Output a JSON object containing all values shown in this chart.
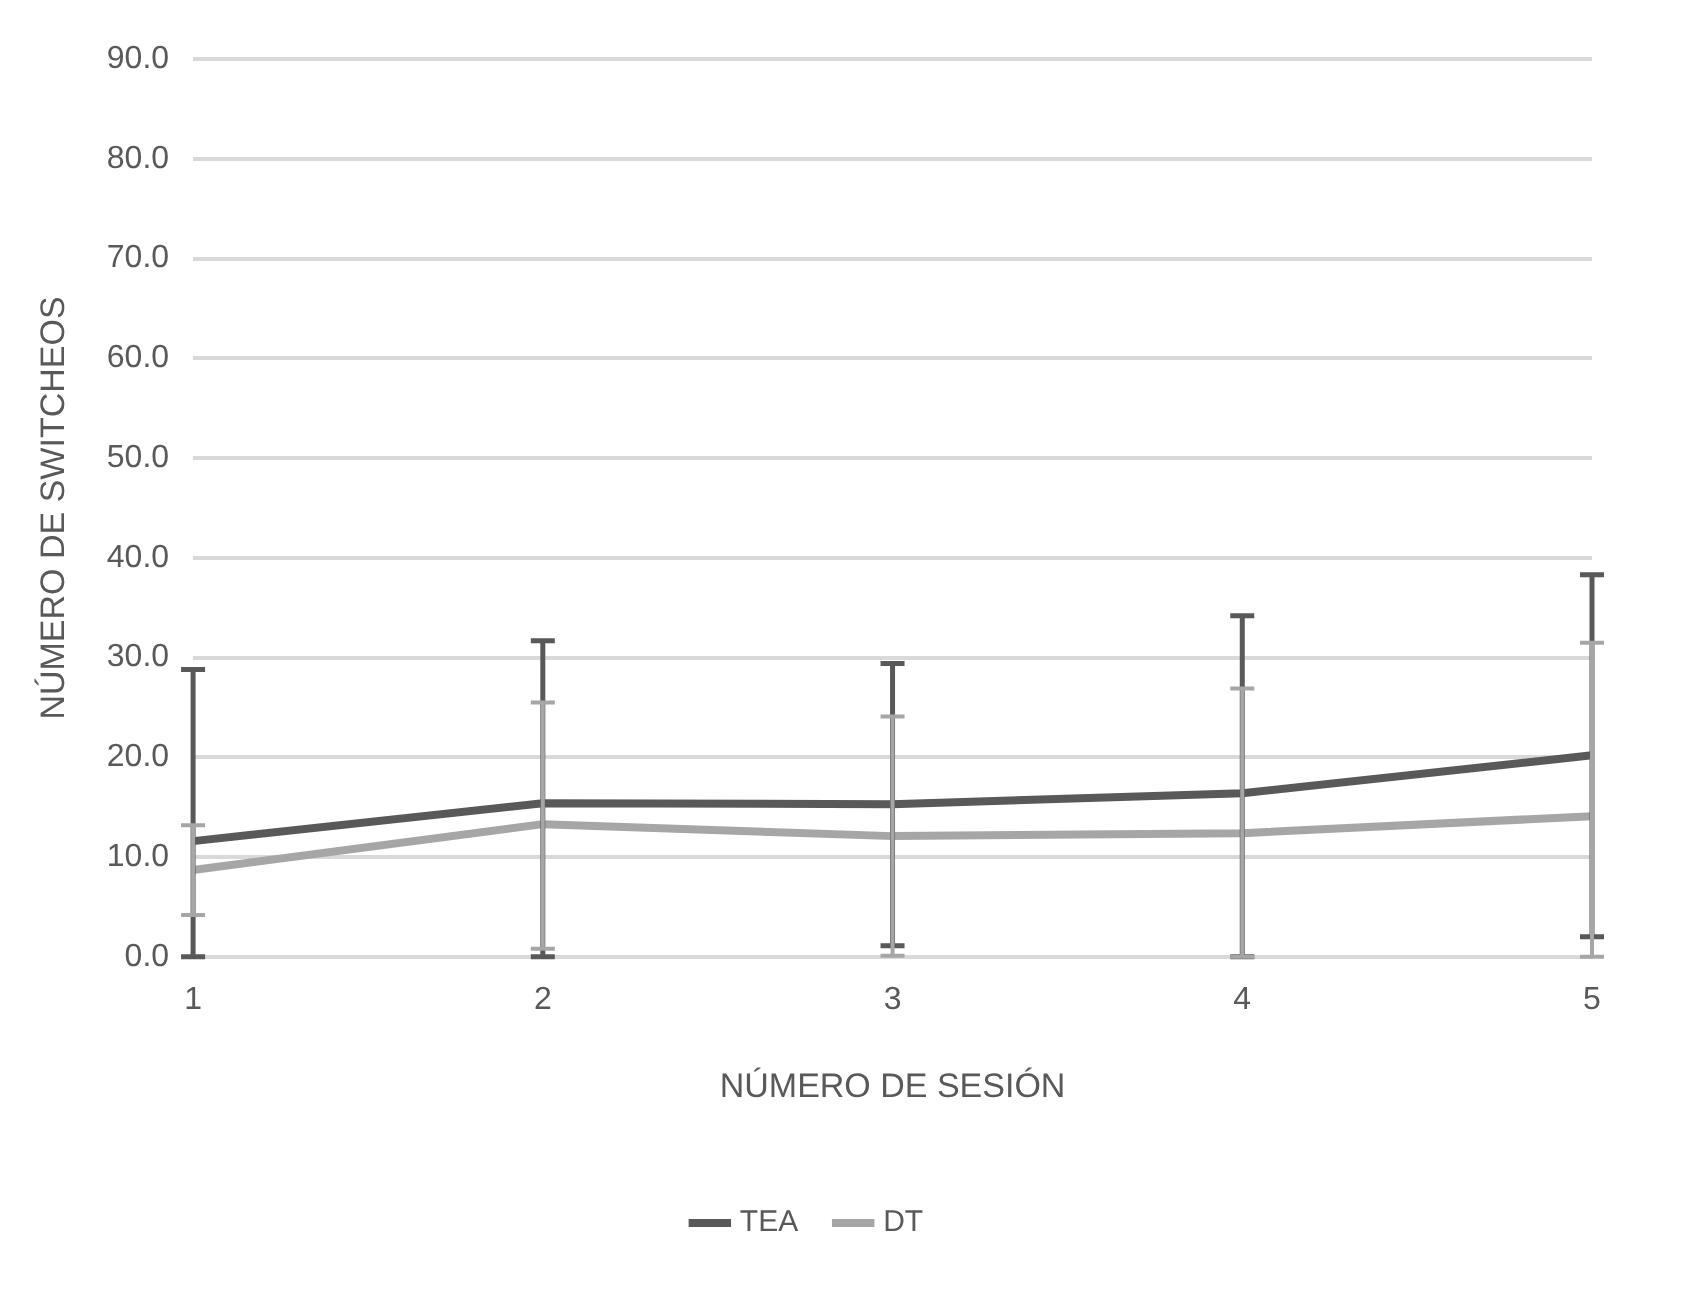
{
  "chart_data": {
    "type": "line",
    "xlabel": "NÚMERO DE SESIÓN",
    "ylabel": "NÚMERO DE SWITCHEOS",
    "categories": [
      "1",
      "2",
      "3",
      "4",
      "5"
    ],
    "series": [
      {
        "name": "TEA",
        "color": "#595959",
        "values": [
          11.6,
          15.4,
          15.3,
          16.4,
          20.2
        ],
        "errors": [
          [
            0,
            28.8
          ],
          [
            0,
            31.7
          ],
          [
            1.1,
            29.4
          ],
          [
            0,
            34.2
          ],
          [
            2.0,
            38.3
          ]
        ]
      },
      {
        "name": "DT",
        "color": "#a6a6a6",
        "values": [
          8.7,
          13.3,
          12.1,
          12.4,
          14.1
        ],
        "errors": [
          [
            4.2,
            13.2
          ],
          [
            0.8,
            25.5
          ],
          [
            0.1,
            24.1
          ],
          [
            0,
            26.9
          ],
          [
            0,
            31.5
          ]
        ]
      }
    ],
    "ylim": [
      0,
      90
    ],
    "yticks": [
      {
        "value": 0,
        "label": "0.0"
      },
      {
        "value": 10,
        "label": "10.0"
      },
      {
        "value": 20,
        "label": "20.0"
      },
      {
        "value": 30,
        "label": "30.0"
      },
      {
        "value": 40,
        "label": "40.0"
      },
      {
        "value": 50,
        "label": "50.0"
      },
      {
        "value": 60,
        "label": "60.0"
      },
      {
        "value": 70,
        "label": "70.0"
      },
      {
        "value": 80,
        "label": "80.0"
      },
      {
        "value": 90,
        "label": "90.0"
      }
    ],
    "grid": "y",
    "legend": "bottom",
    "marker": "none",
    "line_style": "solid"
  }
}
